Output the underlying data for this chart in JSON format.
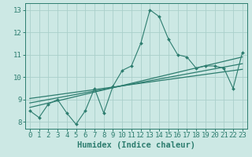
{
  "x": [
    0,
    1,
    2,
    3,
    4,
    5,
    6,
    7,
    8,
    9,
    10,
    11,
    12,
    13,
    14,
    15,
    16,
    17,
    18,
    19,
    20,
    21,
    22,
    23
  ],
  "y_scatter": [
    8.5,
    8.2,
    8.8,
    9.0,
    8.4,
    7.9,
    8.5,
    9.5,
    8.4,
    9.6,
    10.3,
    10.5,
    11.5,
    13.0,
    12.7,
    11.7,
    11.0,
    10.9,
    10.4,
    10.5,
    10.5,
    10.4,
    9.5,
    11.1
  ],
  "trend1_y": [
    8.65,
    10.9
  ],
  "trend2_y": [
    8.85,
    10.6
  ],
  "trend3_y": [
    9.05,
    10.35
  ],
  "xlim": [
    -0.5,
    23.5
  ],
  "ylim": [
    7.7,
    13.3
  ],
  "yticks": [
    8,
    9,
    10,
    11,
    12,
    13
  ],
  "xticks": [
    0,
    1,
    2,
    3,
    4,
    5,
    6,
    7,
    8,
    9,
    10,
    11,
    12,
    13,
    14,
    15,
    16,
    17,
    18,
    19,
    20,
    21,
    22,
    23
  ],
  "xlabel": "Humidex (Indice chaleur)",
  "line_color": "#2d7d6f",
  "bg_color": "#cce8e4",
  "grid_color": "#aacfca",
  "xlabel_fontsize": 7.5,
  "tick_fontsize": 6.5
}
